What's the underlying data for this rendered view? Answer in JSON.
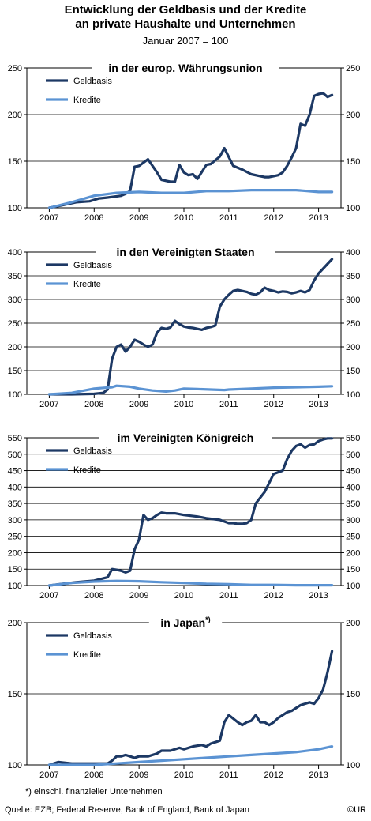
{
  "header": {
    "title_line1": "Entwicklung der Geldbasis und der Kredite",
    "title_line2": "an private Haushalte und Unternehmen",
    "subtitle": "Januar 2007 = 100"
  },
  "footnote": "*) einschl. finanzieller Unternehmen",
  "source": "Quelle: EZB; Federal Reserve, Bank of England, Bank of Japan",
  "copyright": "©UR",
  "colors": {
    "geldbasis": "#1c3864",
    "kredite": "#5b93d3"
  },
  "chart_data": [
    {
      "type": "line",
      "title": "in der europ. Währungsunion",
      "x_ticks": [
        "2007",
        "2008",
        "2009",
        "2010",
        "2011",
        "2012",
        "2013"
      ],
      "ylim": [
        100,
        250
      ],
      "y_ticks": [
        100,
        150,
        200,
        250
      ],
      "legend": "top-left",
      "series": [
        {
          "name": "Geldbasis",
          "color": "#1c3864",
          "x": [
            2007.0,
            2007.3,
            2007.6,
            2007.9,
            2008.1,
            2008.3,
            2008.6,
            2008.7,
            2008.8,
            2008.9,
            2009.0,
            2009.2,
            2009.3,
            2009.4,
            2009.5,
            2009.6,
            2009.7,
            2009.8,
            2009.9,
            2010.0,
            2010.1,
            2010.2,
            2010.3,
            2010.5,
            2010.6,
            2010.7,
            2010.8,
            2010.9,
            2011.1,
            2011.3,
            2011.5,
            2011.7,
            2011.8,
            2011.9,
            2012.0,
            2012.1,
            2012.2,
            2012.3,
            2012.4,
            2012.5,
            2012.6,
            2012.7,
            2012.8,
            2012.9,
            2013.0,
            2013.1,
            2013.2,
            2013.3
          ],
          "y": [
            100,
            103,
            106,
            107,
            110,
            111,
            113,
            115,
            118,
            144,
            145,
            152,
            145,
            138,
            130,
            129,
            128,
            128,
            146,
            138,
            135,
            136,
            131,
            146,
            147,
            151,
            155,
            164,
            145,
            141,
            136,
            134,
            133,
            133,
            134,
            135,
            138,
            145,
            154,
            164,
            190,
            188,
            200,
            220,
            222,
            223,
            219,
            221
          ]
        },
        {
          "name": "Kredite",
          "color": "#5b93d3",
          "x": [
            2007.0,
            2007.5,
            2008.0,
            2008.5,
            2009.0,
            2009.5,
            2010.0,
            2010.5,
            2011.0,
            2011.5,
            2012.0,
            2012.5,
            2013.0,
            2013.3
          ],
          "y": [
            100,
            106,
            113,
            116,
            117,
            116,
            116,
            118,
            118,
            119,
            119,
            119,
            117,
            117
          ]
        }
      ]
    },
    {
      "type": "line",
      "title": "in den Vereinigten Staaten",
      "x_ticks": [
        "2007",
        "2008",
        "2009",
        "2010",
        "2011",
        "2012",
        "2013"
      ],
      "ylim": [
        100,
        400
      ],
      "y_ticks": [
        100,
        150,
        200,
        250,
        300,
        350,
        400
      ],
      "legend": "top-left",
      "series": [
        {
          "name": "Geldbasis",
          "color": "#1c3864",
          "x": [
            2007.0,
            2007.5,
            2008.0,
            2008.2,
            2008.3,
            2008.4,
            2008.5,
            2008.6,
            2008.7,
            2008.8,
            2008.9,
            2009.0,
            2009.1,
            2009.2,
            2009.3,
            2009.4,
            2009.5,
            2009.6,
            2009.7,
            2009.8,
            2009.9,
            2010.0,
            2010.1,
            2010.2,
            2010.3,
            2010.4,
            2010.5,
            2010.6,
            2010.7,
            2010.8,
            2010.9,
            2011.0,
            2011.1,
            2011.2,
            2011.3,
            2011.4,
            2011.5,
            2011.6,
            2011.7,
            2011.8,
            2011.9,
            2012.0,
            2012.1,
            2012.2,
            2012.3,
            2012.4,
            2012.5,
            2012.6,
            2012.7,
            2012.8,
            2012.9,
            2013.0,
            2013.1,
            2013.2,
            2013.3
          ],
          "y": [
            100,
            100,
            101,
            103,
            110,
            175,
            200,
            205,
            190,
            200,
            215,
            211,
            205,
            200,
            205,
            230,
            240,
            238,
            241,
            255,
            248,
            243,
            241,
            240,
            238,
            236,
            240,
            242,
            245,
            285,
            300,
            310,
            318,
            320,
            318,
            316,
            312,
            310,
            315,
            325,
            320,
            318,
            315,
            317,
            316,
            313,
            315,
            318,
            315,
            320,
            340,
            355,
            365,
            375,
            385
          ]
        },
        {
          "name": "Kredite",
          "color": "#5b93d3",
          "x": [
            2007.0,
            2007.5,
            2008.0,
            2008.4,
            2008.5,
            2008.8,
            2009.0,
            2009.3,
            2009.6,
            2009.8,
            2010.0,
            2010.3,
            2010.6,
            2010.9,
            2011.0,
            2011.5,
            2012.0,
            2012.5,
            2013.0,
            2013.3
          ],
          "y": [
            100,
            103,
            112,
            115,
            118,
            116,
            112,
            108,
            106,
            108,
            112,
            111,
            110,
            109,
            110,
            112,
            114,
            115,
            116,
            117
          ]
        }
      ]
    },
    {
      "type": "line",
      "title": "im Vereinigten Königreich",
      "x_ticks": [
        "2007",
        "2008",
        "2009",
        "2010",
        "2011",
        "2012",
        "2013"
      ],
      "ylim": [
        100,
        550
      ],
      "y_ticks": [
        100,
        150,
        200,
        250,
        300,
        350,
        400,
        450,
        500,
        550
      ],
      "legend": "top-left",
      "series": [
        {
          "name": "Geldbasis",
          "color": "#1c3864",
          "x": [
            2007.0,
            2007.3,
            2007.6,
            2008.0,
            2008.3,
            2008.4,
            2008.5,
            2008.6,
            2008.7,
            2008.8,
            2008.9,
            2009.0,
            2009.1,
            2009.2,
            2009.3,
            2009.4,
            2009.5,
            2009.6,
            2009.8,
            2010.0,
            2010.3,
            2010.5,
            2010.8,
            2011.0,
            2011.1,
            2011.2,
            2011.3,
            2011.4,
            2011.5,
            2011.6,
            2011.8,
            2012.0,
            2012.1,
            2012.2,
            2012.3,
            2012.4,
            2012.5,
            2012.6,
            2012.7,
            2012.8,
            2012.9,
            2013.0,
            2013.1,
            2013.2,
            2013.3
          ],
          "y": [
            100,
            105,
            110,
            115,
            125,
            150,
            148,
            145,
            140,
            145,
            210,
            240,
            315,
            300,
            305,
            315,
            322,
            320,
            320,
            315,
            310,
            305,
            300,
            290,
            290,
            288,
            288,
            290,
            300,
            350,
            385,
            440,
            445,
            450,
            485,
            510,
            525,
            530,
            520,
            528,
            530,
            540,
            545,
            548,
            548
          ]
        },
        {
          "name": "Kredite",
          "color": "#5b93d3",
          "x": [
            2007.0,
            2007.5,
            2008.0,
            2008.5,
            2009.0,
            2009.5,
            2010.0,
            2010.5,
            2011.0,
            2011.5,
            2012.0,
            2012.5,
            2013.0,
            2013.3
          ],
          "y": [
            100,
            108,
            112,
            114,
            113,
            110,
            108,
            105,
            104,
            102,
            102,
            101,
            101,
            101
          ]
        }
      ]
    },
    {
      "type": "line",
      "title": "in Japan",
      "title_sup": "*)",
      "x_ticks": [
        "2007",
        "2008",
        "2009",
        "2010",
        "2011",
        "2012",
        "2013"
      ],
      "ylim": [
        100,
        200
      ],
      "y_ticks": [
        100,
        150,
        200
      ],
      "legend": "top-left",
      "series": [
        {
          "name": "Geldbasis",
          "color": "#1c3864",
          "x": [
            2007.0,
            2007.2,
            2007.5,
            2008.0,
            2008.3,
            2008.4,
            2008.5,
            2008.6,
            2008.7,
            2008.8,
            2008.9,
            2009.0,
            2009.2,
            2009.4,
            2009.5,
            2009.7,
            2009.9,
            2010.0,
            2010.2,
            2010.4,
            2010.5,
            2010.6,
            2010.7,
            2010.8,
            2010.9,
            2011.0,
            2011.2,
            2011.3,
            2011.4,
            2011.5,
            2011.6,
            2011.7,
            2011.8,
            2011.9,
            2012.0,
            2012.1,
            2012.2,
            2012.3,
            2012.4,
            2012.5,
            2012.6,
            2012.7,
            2012.8,
            2012.9,
            2013.0,
            2013.1,
            2013.2,
            2013.3
          ],
          "y": [
            100,
            102,
            101,
            101,
            101,
            103,
            106,
            106,
            107,
            106,
            105,
            106,
            106,
            108,
            110,
            110,
            112,
            111,
            113,
            114,
            113,
            115,
            116,
            117,
            130,
            135,
            130,
            128,
            130,
            131,
            135,
            130,
            130,
            128,
            130,
            133,
            135,
            137,
            138,
            140,
            142,
            143,
            144,
            143,
            147,
            153,
            165,
            180
          ]
        },
        {
          "name": "Kredite",
          "color": "#5b93d3",
          "x": [
            2007.0,
            2007.5,
            2008.0,
            2008.5,
            2009.0,
            2009.5,
            2010.0,
            2010.5,
            2011.0,
            2011.5,
            2012.0,
            2012.5,
            2013.0,
            2013.3
          ],
          "y": [
            100,
            100,
            100,
            101,
            102,
            103,
            104,
            105,
            106,
            107,
            108,
            109,
            111,
            113
          ]
        }
      ]
    }
  ]
}
